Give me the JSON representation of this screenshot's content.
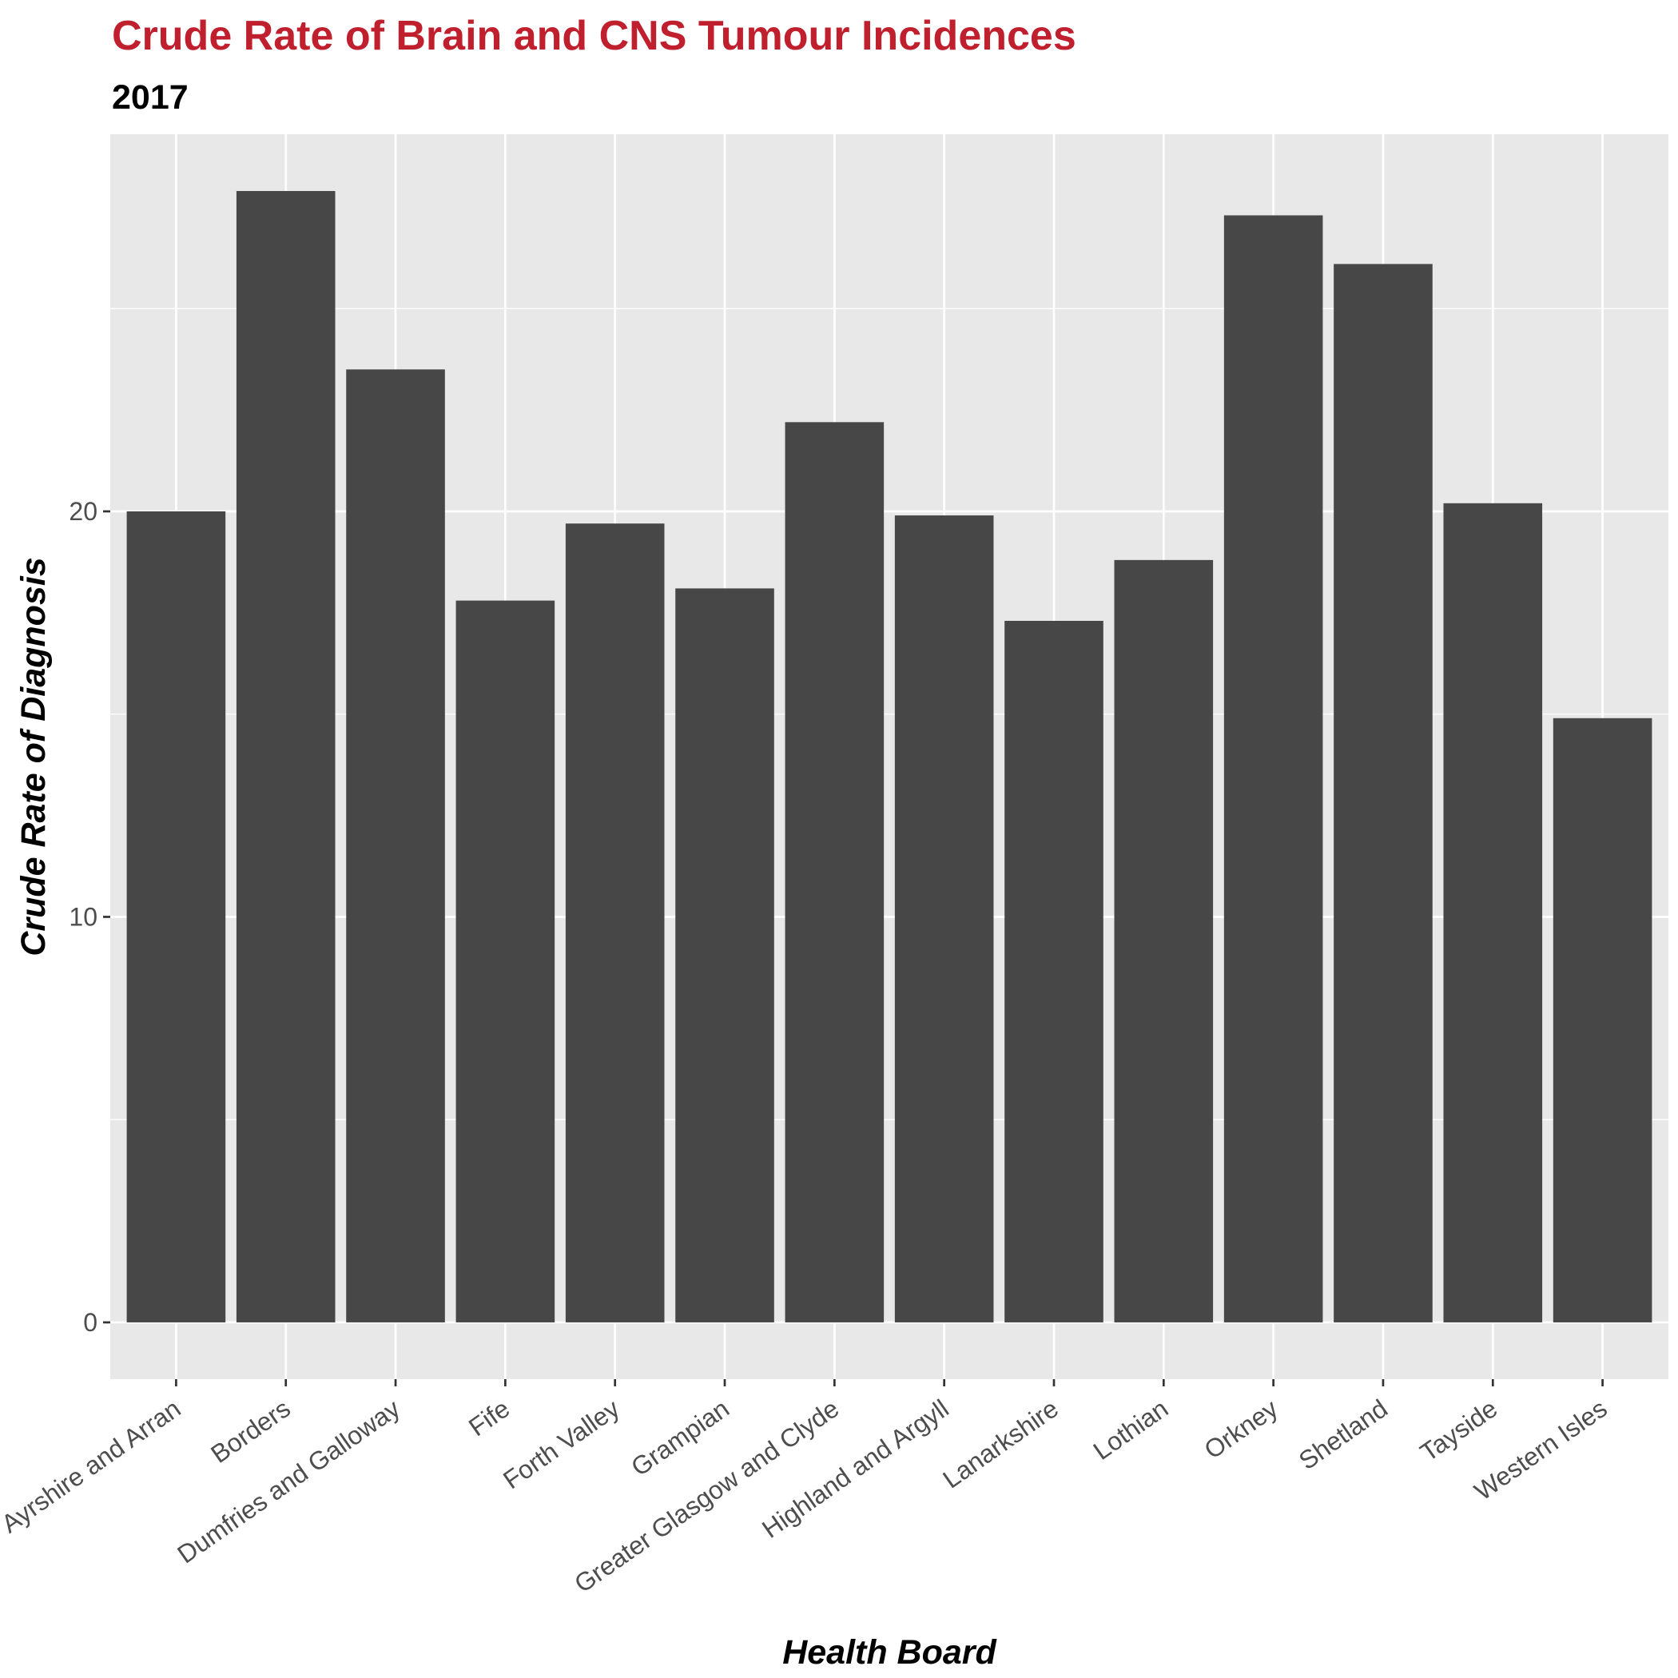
{
  "chart_data": {
    "type": "bar",
    "title": "Crude Rate of Brain and CNS Tumour Incidences",
    "subtitle": "2017",
    "xlabel": "Health Board",
    "ylabel": "Crude Rate of Diagnosis",
    "categories": [
      "Ayrshire and Arran",
      "Borders",
      "Dumfries and Galloway",
      "Fife",
      "Forth Valley",
      "Grampian",
      "Greater Glasgow and Clyde",
      "Highland and Argyll",
      "Lanarkshire",
      "Lothian",
      "Orkney",
      "Shetland",
      "Tayside",
      "Western Isles"
    ],
    "values": [
      20.0,
      27.9,
      23.5,
      17.8,
      19.7,
      18.1,
      22.2,
      19.9,
      17.3,
      18.8,
      27.3,
      26.1,
      20.2,
      14.9
    ],
    "y_ticks": [
      0,
      10,
      20
    ],
    "ylim": [
      -1.4,
      29.3
    ],
    "grid": true,
    "legend": "none",
    "colors": {
      "title": "#c0202e",
      "bar": "#474747",
      "panel": "#e8e8e8",
      "grid": "#ffffff"
    }
  }
}
